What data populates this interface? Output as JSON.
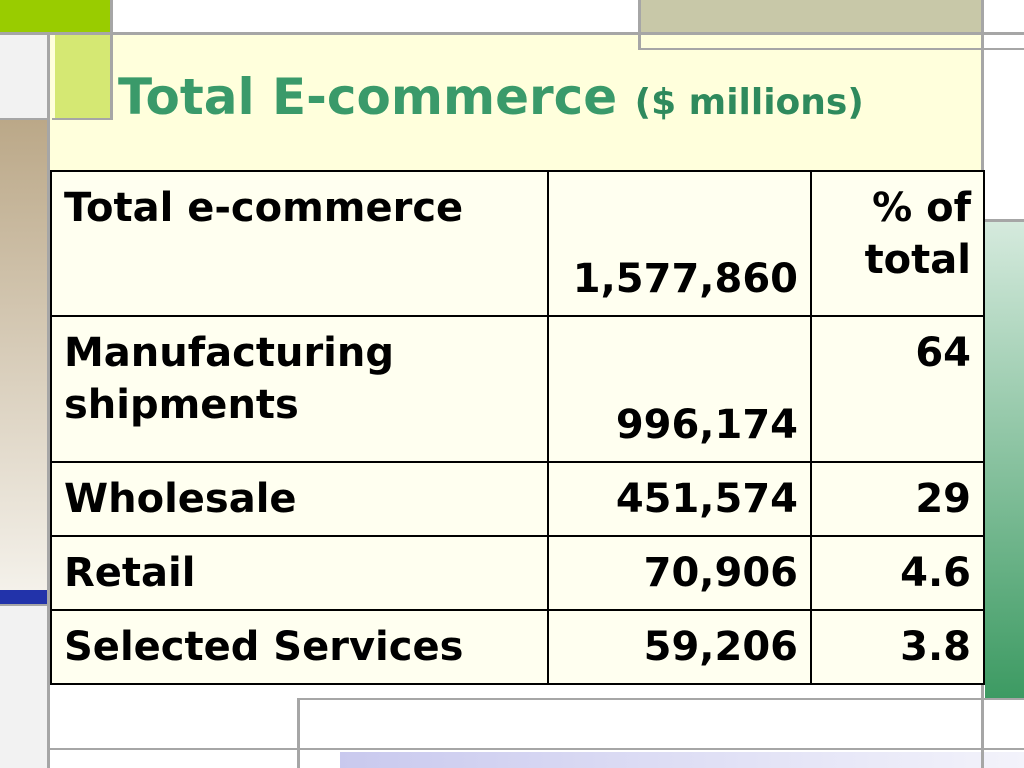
{
  "title": {
    "main": "Total E-commerce",
    "unit": "($ millions)"
  },
  "table": {
    "header": {
      "label": "Total e-commerce",
      "value": "1,577,860",
      "pct": "% of total"
    },
    "rows": [
      {
        "label": "Manufacturing shipments",
        "value": "996,174",
        "pct": "64"
      },
      {
        "label": "Wholesale",
        "value": "451,574",
        "pct": "29"
      },
      {
        "label": "Retail",
        "value": "70,906",
        "pct": "4.6"
      },
      {
        "label": "Selected Services",
        "value": "59,206",
        "pct": "3.8"
      }
    ]
  },
  "colors": {
    "title": "#3a9a6a",
    "title_band": "#ffffdd",
    "table_bg": "#fffff0",
    "accent_lime": "#99cc00",
    "accent_khaki": "#c8c8a8",
    "accent_tan": "#b8a88a",
    "accent_blue": "#2233aa",
    "accent_green": "#3a9a60",
    "grid_line": "#a6a6a6"
  }
}
